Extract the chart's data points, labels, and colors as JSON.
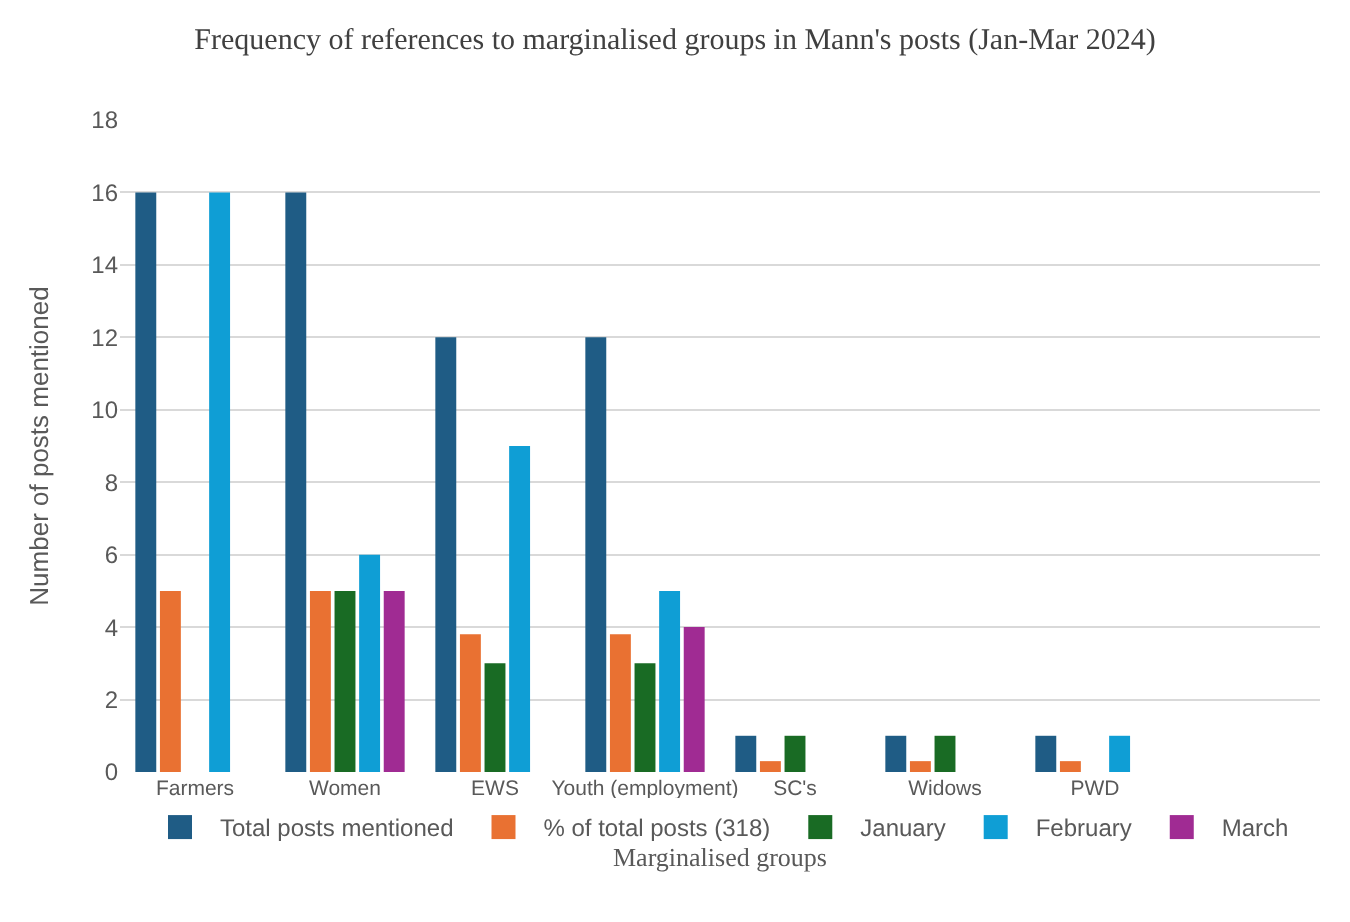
{
  "chart_data": {
    "type": "bar",
    "title": "Frequency of references to marginalised groups in Mann's posts (Jan-Mar 2024)",
    "xlabel": "Marginalised groups",
    "ylabel": "Number of posts mentioned",
    "categories": [
      "Farmers",
      "Women",
      "EWS",
      "Youth (employment)",
      "SC's",
      "Widows",
      "PWD",
      null
    ],
    "series": [
      {
        "name": "Total posts mentioned",
        "color": "#1f5c85",
        "values": [
          16,
          16,
          12,
          12,
          1,
          1,
          1,
          null
        ]
      },
      {
        "name": "% of total posts (318)",
        "color": "#e97132",
        "values": [
          5,
          5,
          3.8,
          3.8,
          0.3,
          0.3,
          0.3,
          null
        ]
      },
      {
        "name": "January",
        "color": "#196b24",
        "values": [
          null,
          5,
          3,
          3,
          1,
          1,
          null,
          null
        ]
      },
      {
        "name": "February",
        "color": "#0f9ed5",
        "values": [
          16,
          6,
          9,
          5,
          null,
          null,
          1,
          null
        ]
      },
      {
        "name": "March",
        "color": "#a02b93",
        "values": [
          null,
          5,
          null,
          4,
          null,
          null,
          null,
          null
        ]
      }
    ],
    "ylim": [
      0,
      18
    ],
    "yticks": [
      0,
      2,
      4,
      6,
      8,
      10,
      12,
      14,
      16,
      18
    ],
    "grid": "y",
    "legend": "bottom"
  }
}
